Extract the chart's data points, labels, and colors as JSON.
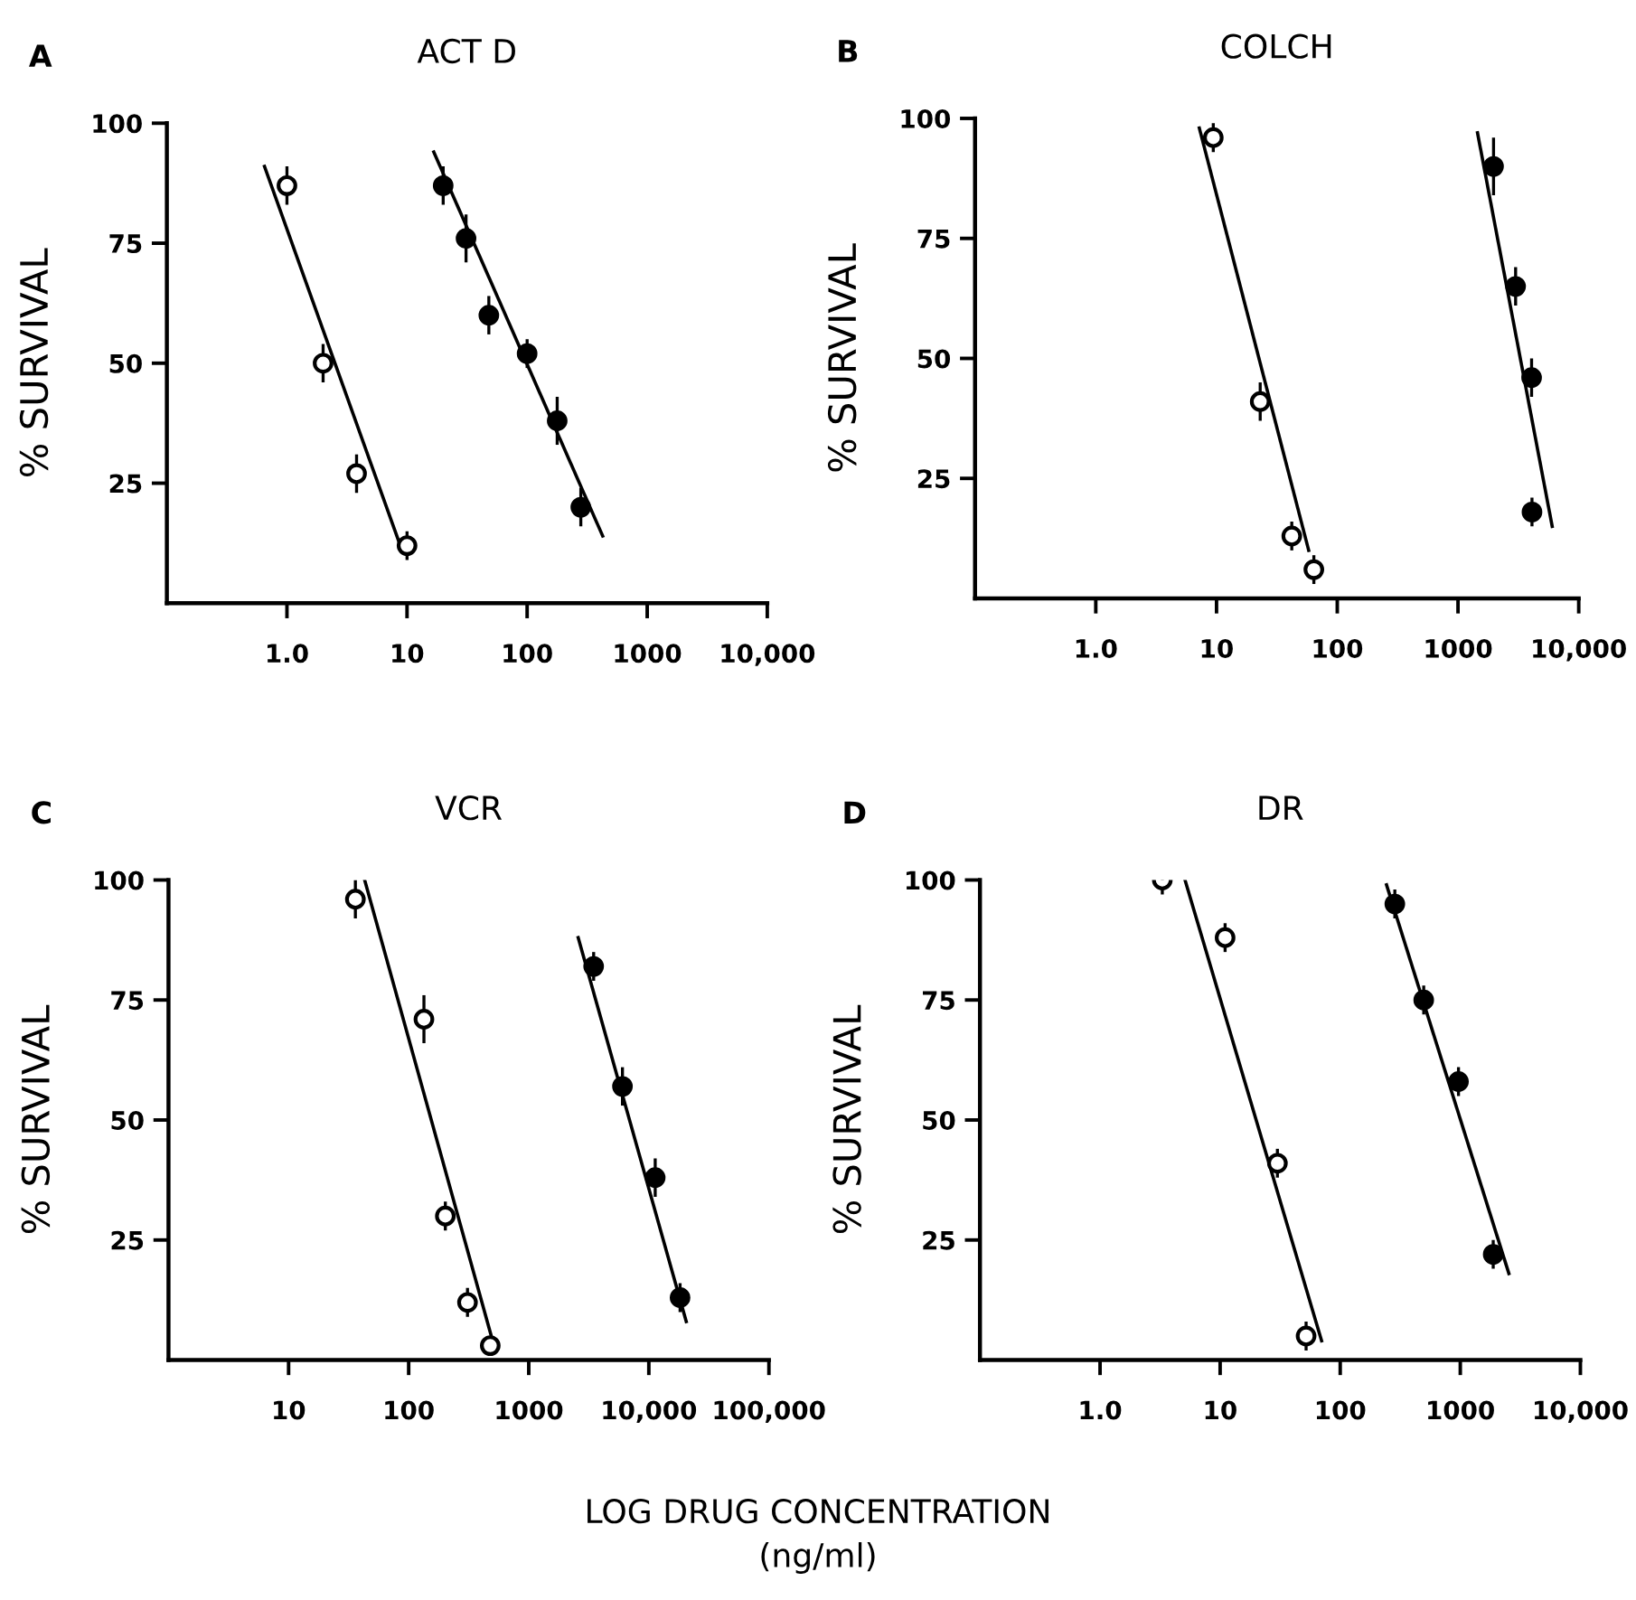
{
  "chart_data": [
    {
      "type": "scatter",
      "title": "ACT D",
      "ylabel": "% SURVIVAL",
      "annotations": [
        "A"
      ],
      "log": "x",
      "marker": "circle",
      "grid": false,
      "legend": false,
      "xlim": [
        0.1,
        10000
      ],
      "xticks": [
        {
          "value": 1,
          "label": "1.0"
        },
        10,
        100,
        1000,
        {
          "value": 10000,
          "label": "10,000"
        }
      ],
      "ylim": [
        0,
        100
      ],
      "yticks": [
        25,
        50,
        75,
        100
      ],
      "series": [
        {
          "color": "#ffffff",
          "x": [
            1,
            2,
            3.8,
            10
          ],
          "values": [
            87,
            50,
            27,
            12
          ],
          "errors": [
            4,
            4,
            4,
            3
          ]
        },
        {
          "color": "#000000",
          "x": [
            20,
            31,
            48,
            100,
            178,
            280
          ],
          "values": [
            87,
            76,
            60,
            52,
            38,
            20
          ],
          "errors": [
            4,
            5,
            4,
            3,
            5,
            4
          ]
        },
        {
          "type": "line",
          "marker": "none",
          "color": "#000000",
          "x": [
            0.65,
            8.5
          ],
          "values": [
            91,
            13
          ]
        },
        {
          "type": "line",
          "marker": "none",
          "color": "#000000",
          "x": [
            16.7,
            426
          ],
          "values": [
            94,
            14
          ]
        }
      ]
    },
    {
      "type": "scatter",
      "title": "COLCH",
      "ylabel": "% SURVIVAL",
      "annotations": [
        "B"
      ],
      "log": "x",
      "marker": "circle",
      "grid": false,
      "legend": false,
      "xlim": [
        0.1,
        10000
      ],
      "xticks": [
        {
          "value": 1,
          "label": "1.0"
        },
        10,
        100,
        1000,
        {
          "value": 10000,
          "label": "10,000"
        }
      ],
      "ylim": [
        0,
        100
      ],
      "yticks": [
        25,
        50,
        75,
        100
      ],
      "series": [
        {
          "color": "#ffffff",
          "x": [
            9.4,
            23,
            42,
            64
          ],
          "values": [
            96,
            41,
            13,
            6
          ],
          "errors": [
            3,
            4,
            3,
            3
          ]
        },
        {
          "color": "#000000",
          "x": [
            1970,
            3000,
            4070,
            4100
          ],
          "values": [
            90,
            65,
            46,
            18
          ],
          "errors": [
            6,
            4,
            4,
            3
          ]
        },
        {
          "type": "line",
          "marker": "none",
          "color": "#000000",
          "x": [
            7.2,
            58
          ],
          "values": [
            98,
            10
          ]
        },
        {
          "type": "line",
          "marker": "none",
          "color": "#000000",
          "x": [
            1450,
            6030
          ],
          "values": [
            97,
            15
          ]
        }
      ]
    },
    {
      "type": "scatter",
      "title": "VCR",
      "ylabel": "% SURVIVAL",
      "annotations": [
        "C"
      ],
      "log": "x",
      "marker": "circle",
      "grid": false,
      "legend": false,
      "xlim": [
        1,
        100000
      ],
      "xticks": [
        10,
        100,
        1000,
        {
          "value": 10000,
          "label": "10,000"
        },
        {
          "value": 100000,
          "label": "100,000"
        }
      ],
      "ylim": [
        0,
        100
      ],
      "yticks": [
        25,
        50,
        75,
        100
      ],
      "series": [
        {
          "color": "#ffffff",
          "x": [
            36,
            134,
            202,
            309,
            478
          ],
          "values": [
            96,
            71,
            30,
            12,
            3
          ],
          "errors": [
            4,
            5,
            3,
            3,
            2
          ]
        },
        {
          "color": "#000000",
          "x": [
            3470,
            6030,
            11300,
            18200
          ],
          "values": [
            82,
            57,
            38,
            13
          ],
          "errors": [
            3,
            4,
            4,
            3
          ]
        },
        {
          "type": "line",
          "marker": "none",
          "color": "#000000",
          "x": [
            43,
            500
          ],
          "values": [
            100,
            4
          ]
        },
        {
          "type": "line",
          "marker": "none",
          "color": "#000000",
          "x": [
            2580,
            20500
          ],
          "values": [
            88,
            8
          ]
        }
      ]
    },
    {
      "type": "scatter",
      "title": "DR",
      "ylabel": "% SURVIVAL",
      "annotations": [
        "D",
        "LOG DRUG CONCENTRATION\n(ng/ml)"
      ],
      "log": "x",
      "marker": "circle",
      "grid": false,
      "legend": false,
      "xlim": [
        0.1,
        10000
      ],
      "xticks": [
        {
          "value": 1,
          "label": "1.0"
        },
        10,
        100,
        1000,
        {
          "value": 10000,
          "label": "10,000"
        }
      ],
      "ylim": [
        0,
        100
      ],
      "yticks": [
        25,
        50,
        75,
        100
      ],
      "series": [
        {
          "color": "#ffffff",
          "x": [
            3.3,
            11,
            30,
            52
          ],
          "values": [
            100,
            88,
            41,
            5
          ],
          "errors": [
            3,
            3,
            3,
            3
          ]
        },
        {
          "color": "#000000",
          "x": [
            285,
            496,
            966,
            1880
          ],
          "values": [
            95,
            75,
            58,
            22
          ],
          "errors": [
            3,
            3,
            3,
            3
          ]
        },
        {
          "type": "line",
          "marker": "none",
          "color": "#000000",
          "x": [
            5.1,
            70
          ],
          "values": [
            100,
            4
          ]
        },
        {
          "type": "line",
          "marker": "none",
          "color": "#000000",
          "x": [
            243,
            2540
          ],
          "values": [
            99,
            18
          ]
        }
      ]
    }
  ]
}
